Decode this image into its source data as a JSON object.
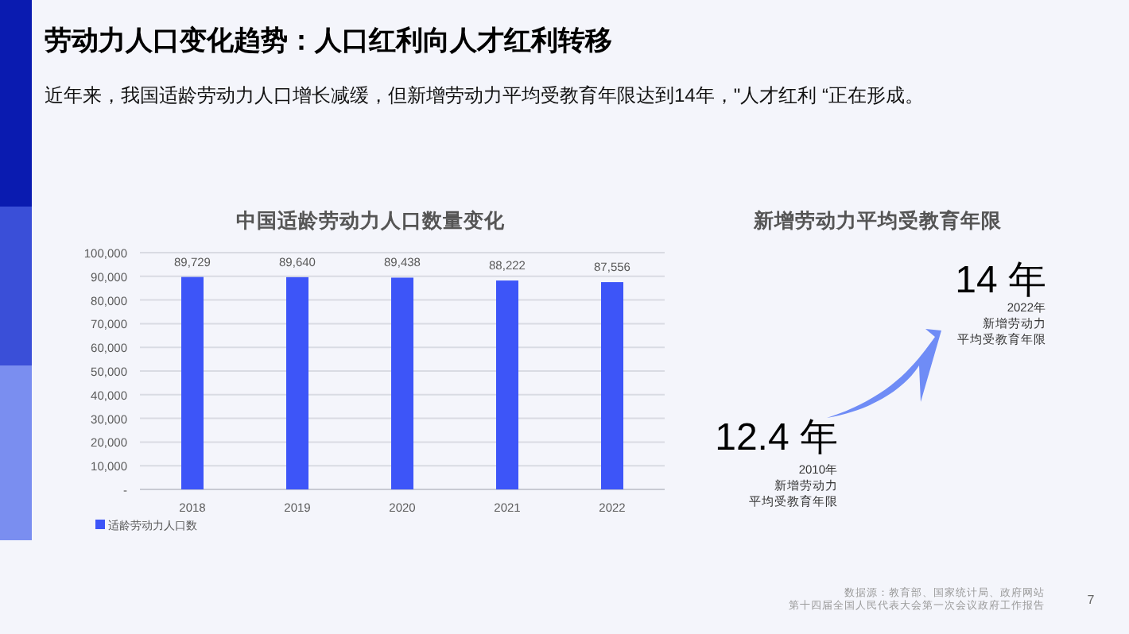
{
  "chart_data": [
    {
      "type": "bar",
      "title": "中国适龄劳动力人口数量变化",
      "categories": [
        "2018",
        "2019",
        "2020",
        "2021",
        "2022"
      ],
      "series": [
        {
          "name": "适龄劳动力人口数",
          "color": "#3d55f8",
          "values": [
            89729,
            89640,
            89438,
            88222,
            87556
          ],
          "value_labels": [
            "89,729",
            "89,640",
            "89,438",
            "88,222",
            "87,556"
          ]
        }
      ],
      "ylim": [
        0,
        100000
      ],
      "yticks": [
        {
          "value": 0,
          "label": "-"
        },
        {
          "value": 10000,
          "label": "10,000"
        },
        {
          "value": 20000,
          "label": "20,000"
        },
        {
          "value": 30000,
          "label": "30,000"
        },
        {
          "value": 40000,
          "label": "40,000"
        },
        {
          "value": 50000,
          "label": "50,000"
        },
        {
          "value": 60000,
          "label": "60,000"
        },
        {
          "value": 70000,
          "label": "70,000"
        },
        {
          "value": 80000,
          "label": "80,000"
        },
        {
          "value": 90000,
          "label": "90,000"
        },
        {
          "value": 100000,
          "label": "100,000"
        }
      ],
      "grid": "y",
      "legend": "bottom left",
      "annotations": [
        "劳动力人口变化趋势：人口红利向人才红利转移",
        "近年来，我国适龄劳动力人口增长减缓，但新增劳动力平均受教育年限达到14年，\"人才红利 “正在形成。",
        "数据源：教育部、国家统计局、政府网站",
        "第十四届全国人民代表大会第一次会议政府工作报告",
        "7"
      ]
    },
    {
      "type": "other",
      "title": "新增劳动力平均受教育年限",
      "annotations": [
        "12.4 年",
        "2010年",
        "新增劳动力",
        "平均受教育年限",
        "14 年",
        "2022年",
        "新增劳动力",
        "平均受教育年限"
      ]
    }
  ]
}
